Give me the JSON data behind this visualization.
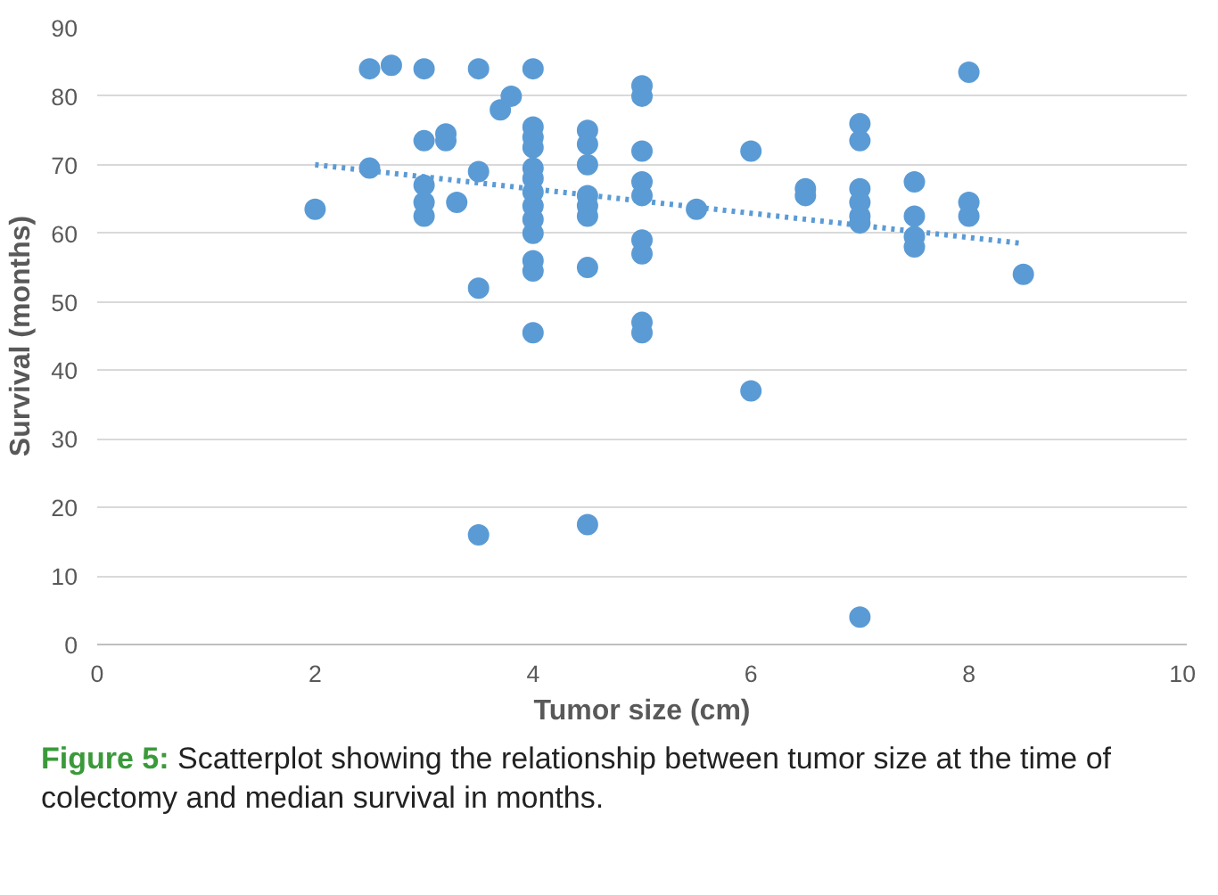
{
  "chart_data": {
    "type": "scatter",
    "xlabel": "Tumor size (cm)",
    "ylabel": "Survival (months)",
    "xlim": [
      0,
      10
    ],
    "xticks": [
      0,
      2,
      4,
      6,
      8,
      10
    ],
    "ylim": [
      0,
      90
    ],
    "yticks": [
      0,
      10,
      20,
      30,
      40,
      50,
      60,
      70,
      80,
      90
    ],
    "grid": "y",
    "marker": "circle",
    "annotations": [
      "Figure 5: Scatterplot showing the relationship between tumor size at the time of colectomy and median survival in months."
    ],
    "series": [
      {
        "color": "#5b9bd5",
        "x": [
          2,
          2.5,
          2.5,
          2.7,
          3,
          3,
          3,
          3,
          3,
          3.2,
          3.2,
          3.3,
          3.5,
          3.5,
          3.5,
          3.5,
          3.7,
          3.8,
          4,
          4,
          4,
          4,
          4,
          4,
          4,
          4,
          4,
          4,
          4,
          4,
          4,
          4.5,
          4.5,
          4.5,
          4.5,
          4.5,
          4.5,
          4.5,
          4.5,
          5,
          5,
          5,
          5,
          5,
          5,
          5,
          5,
          5,
          5.5,
          6,
          6,
          6.5,
          6.5,
          7,
          7,
          7,
          7,
          7,
          7,
          7,
          7.5,
          7.5,
          7.5,
          7.5,
          8,
          8,
          8,
          8.5
        ],
        "values": [
          63.5,
          84,
          69.5,
          84.5,
          84,
          73.5,
          67,
          64.5,
          62.5,
          74.5,
          73.5,
          64.5,
          84,
          69,
          52,
          16,
          78,
          80,
          84,
          75.5,
          74,
          72.5,
          69.5,
          68,
          66,
          64,
          62,
          60,
          56,
          54.5,
          45.5,
          75,
          73,
          70,
          65.5,
          64,
          62.5,
          55,
          17.5,
          81.5,
          80,
          72,
          67.5,
          65.5,
          59,
          57,
          47,
          45.5,
          63.5,
          72,
          37,
          66.5,
          65.5,
          76,
          73.5,
          66.5,
          64.5,
          62.5,
          61.5,
          4,
          67.5,
          62.5,
          59.5,
          58,
          83.5,
          64.5,
          62.5,
          54
        ]
      },
      {
        "type": "line",
        "color": "#5b9bd5",
        "line_style": "dotted",
        "marker": "none",
        "x": [
          2,
          8.5
        ],
        "values": [
          70,
          58.5
        ]
      }
    ]
  }
}
